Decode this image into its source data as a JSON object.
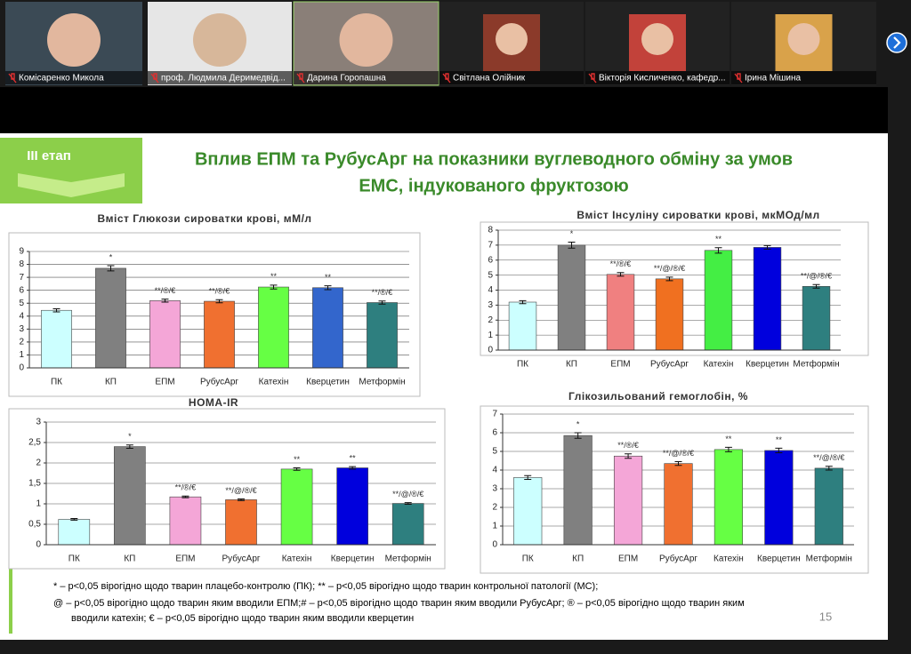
{
  "participants": [
    {
      "name": "Комісаренко Микола"
    },
    {
      "name": "проф. Людмила Деримедвід..."
    },
    {
      "name": "Дарина Горопашна"
    },
    {
      "name": "Світлана Олійник"
    },
    {
      "name": "Вікторія Кисличенко, кафедр..."
    },
    {
      "name": "Ірина Мішина"
    }
  ],
  "slide": {
    "stage": "III етап",
    "title": [
      "Вплив ЕПМ та РубусАрг на показники вуглеводного обміну за умов",
      "ЕМС, індукованого фруктозою"
    ],
    "charts": [
      {
        "type": "bar",
        "title": "Вміст Глюкози сироватки крові, мМ/л",
        "categories": [
          "ПК",
          "КП",
          "ЕПМ",
          "РубусАрг",
          "Катехін",
          "Кверцетин",
          "Метформін"
        ],
        "values": [
          4.45,
          7.7,
          5.2,
          5.15,
          6.25,
          6.2,
          5.05
        ],
        "errors": [
          0.12,
          0.2,
          0.12,
          0.12,
          0.15,
          0.15,
          0.12
        ],
        "annotations": [
          null,
          "*",
          "**/®/€",
          "**/®/€",
          "**",
          "**",
          "**/®/€"
        ],
        "colors": [
          "#ccffff",
          "#808080",
          "#f4a6d7",
          "#f07030",
          "#66ff44",
          "#3366cc",
          "#2e7f7f"
        ],
        "ylim": [
          0,
          9
        ],
        "yticks": [
          0,
          1,
          2,
          3,
          4,
          5,
          6,
          7,
          8,
          9
        ],
        "grid": true
      },
      {
        "type": "bar",
        "title": "Вміст Інсуліну сироватки крові, мкМОд/мл",
        "categories": [
          "ПК",
          "КП",
          "ЕПМ",
          "РубусАрг",
          "Катехін",
          "Кверцетин",
          "Метформін"
        ],
        "values": [
          3.2,
          7.0,
          5.05,
          4.75,
          6.65,
          6.85,
          4.25
        ],
        "errors": [
          0.1,
          0.2,
          0.12,
          0.12,
          0.18,
          0.12,
          0.12
        ],
        "annotations": [
          null,
          "*",
          "**/®/€",
          "**/@/®/€",
          "**",
          null,
          "**/@/®/€"
        ],
        "colors": [
          "#ccffff",
          "#808080",
          "#f08080",
          "#f07020",
          "#44ee44",
          "#0000dd",
          "#2e7f7f"
        ],
        "ylim": [
          0,
          8
        ],
        "yticks": [
          0,
          1,
          2,
          3,
          4,
          5,
          6,
          7,
          8
        ],
        "grid": true
      },
      {
        "type": "bar",
        "title": "HOMA-IR",
        "categories": [
          "ПК",
          "КП",
          "ЕПМ",
          "РубусАрг",
          "Катехін",
          "Кверцетин",
          "Метформін"
        ],
        "values": [
          0.62,
          2.4,
          1.17,
          1.1,
          1.85,
          1.88,
          1.01
        ],
        "errors": [
          0.02,
          0.04,
          0.02,
          0.02,
          0.03,
          0.03,
          0.02
        ],
        "annotations": [
          null,
          "*",
          "**/®/€",
          "**/@/®/€",
          "**",
          "**",
          "**/@/®/€"
        ],
        "colors": [
          "#ccffff",
          "#808080",
          "#f4a6d7",
          "#f07030",
          "#66ff44",
          "#0000dd",
          "#2e7f7f"
        ],
        "ylim": [
          0,
          3
        ],
        "yticks": [
          0,
          {
            "value": 0.5,
            "label": "0,5"
          },
          1,
          {
            "value": 1.5,
            "label": "1,5"
          },
          2,
          {
            "value": 2.5,
            "label": "2,5"
          },
          3
        ],
        "grid": true
      },
      {
        "type": "bar",
        "title": "Глікозильований гемоглобін, %",
        "categories": [
          "ПК",
          "КП",
          "ЕПМ",
          "РубусАрг",
          "Катехін",
          "Кверцетин",
          "Метформін"
        ],
        "values": [
          3.6,
          5.85,
          4.75,
          4.35,
          5.1,
          5.05,
          4.1
        ],
        "errors": [
          0.1,
          0.15,
          0.12,
          0.1,
          0.12,
          0.12,
          0.1
        ],
        "annotations": [
          null,
          "*",
          "**/®/€",
          "**/@/®/€",
          "**",
          "**",
          "**/@/®/€"
        ],
        "colors": [
          "#ccffff",
          "#808080",
          "#f4a6d7",
          "#f07030",
          "#66ff44",
          "#0000dd",
          "#2e7f7f"
        ],
        "ylim": [
          0,
          7
        ],
        "yticks": [
          0,
          1,
          2,
          3,
          4,
          5,
          6,
          7
        ],
        "grid": true
      }
    ],
    "footnotes": [
      "* – p<0,05 вірогідно щодо тварин плацебо-контролю (ПК); ** – p<0,05 вірогідно щодо тварин контрольної патології (МС);",
      "@ – p<0,05 вірогідно щодо тварин яким вводили ЕПМ;# – p<0,05 вірогідно щодо тварин яким вводили РубусАрг; ® – p<0,05 вірогідно щодо тварин яким",
      "вводили катехін; € – p<0,05 вірогідно щодо тварин яким вводили кверцетин"
    ],
    "page": "15"
  }
}
